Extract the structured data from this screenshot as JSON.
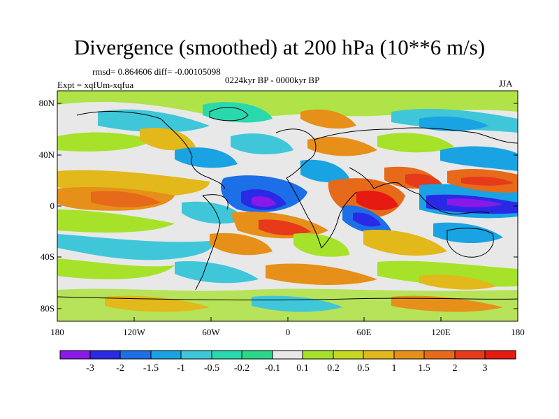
{
  "title": "Divergence (smoothed) at 200 hPa (10**6 m/s)",
  "stats": "rmsd= 0.864606  diff= -0.00105098",
  "period": "0224kyr BP - 0000kyr BP",
  "experiment": "Expt = xqfUm-xqfua",
  "season": "JJA",
  "lat_labels": [
    "80N",
    "40N",
    "0",
    "40S",
    "80S"
  ],
  "lon_labels": [
    "180",
    "120W",
    "60W",
    "0",
    "60E",
    "120E",
    "180"
  ],
  "colorbar": {
    "labels": [
      "-3",
      "-2",
      "-1.5",
      "-1",
      "-0.5",
      "-0.2",
      "-0.1",
      "0.1",
      "0.2",
      "0.5",
      "1",
      "1.5",
      "2",
      "3"
    ],
    "colors": [
      "#8a19e8",
      "#2a2ae6",
      "#1c6fe6",
      "#1aa3e2",
      "#3fc7d9",
      "#2ad8ae",
      "#e8e8e8",
      "#a6e22a",
      "#c8d81e",
      "#e2b81a",
      "#e6901a",
      "#e66a1a",
      "#e63a1a",
      "#e61a10"
    ]
  }
}
